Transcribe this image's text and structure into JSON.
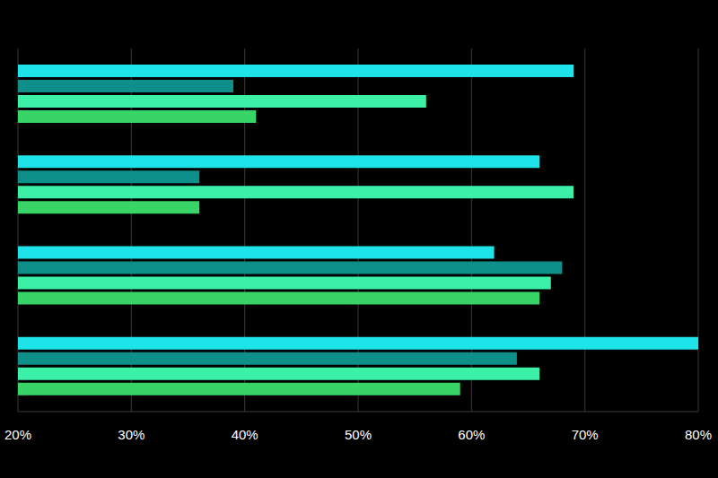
{
  "chart_data": {
    "type": "bar",
    "orientation": "horizontal",
    "grid": true,
    "categories": [
      null,
      null,
      null,
      null
    ],
    "series": [
      {
        "color": "#1ee3e8",
        "values": [
          69,
          66,
          62,
          80
        ]
      },
      {
        "color": "#0f8f8a",
        "values": [
          39,
          36,
          68,
          64
        ]
      },
      {
        "color": "#3df0a8",
        "values": [
          56,
          69,
          67,
          66
        ]
      },
      {
        "color": "#38d468",
        "values": [
          41,
          36,
          66,
          59
        ]
      }
    ],
    "xlim": [
      20,
      80
    ],
    "xticks": [
      {
        "value": 20,
        "label": "20%"
      },
      {
        "value": 30,
        "label": "30%"
      },
      {
        "value": 40,
        "label": "40%"
      },
      {
        "value": 50,
        "label": "50%"
      },
      {
        "value": 60,
        "label": "60%"
      },
      {
        "value": 70,
        "label": "70%"
      },
      {
        "value": 80,
        "label": "80%"
      }
    ]
  }
}
